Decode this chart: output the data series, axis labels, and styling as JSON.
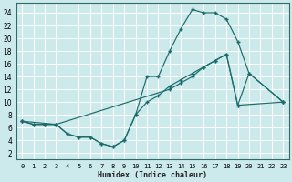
{
  "xlabel": "Humidex (Indice chaleur)",
  "bg_color": "#cce9ec",
  "grid_color": "#ffffff",
  "line_color": "#1a6b6b",
  "xlim": [
    -0.5,
    23.5
  ],
  "ylim": [
    1,
    25.5
  ],
  "xticks": [
    0,
    1,
    2,
    3,
    4,
    5,
    6,
    7,
    8,
    9,
    10,
    11,
    12,
    13,
    14,
    15,
    16,
    17,
    18,
    19,
    20,
    21,
    22,
    23
  ],
  "yticks": [
    2,
    4,
    6,
    8,
    10,
    12,
    14,
    16,
    18,
    20,
    22,
    24
  ],
  "curve1_x": [
    0,
    1,
    2,
    3,
    4,
    5,
    6,
    7,
    8,
    9,
    10,
    11,
    12,
    13,
    14,
    15,
    16,
    17,
    18,
    19,
    20,
    23
  ],
  "curve1_y": [
    7,
    6.5,
    6.5,
    6.5,
    5,
    4.5,
    4.5,
    3.5,
    3,
    4,
    8,
    14,
    14,
    18,
    21.5,
    24.5,
    24,
    24,
    23,
    19.5,
    14.5,
    10
  ],
  "curve2_x": [
    0,
    1,
    2,
    3,
    4,
    5,
    6,
    7,
    8,
    9,
    10,
    11,
    12,
    13,
    14,
    15,
    16,
    17,
    18,
    19,
    23
  ],
  "curve2_y": [
    7,
    6.5,
    6.5,
    6.5,
    5,
    4.5,
    4.5,
    3.5,
    3,
    4,
    8,
    10,
    11,
    12.5,
    13.5,
    14.5,
    15.5,
    16.5,
    17.5,
    9.5,
    10
  ],
  "curve3_x": [
    0,
    3,
    13,
    14,
    15,
    16,
    17,
    18,
    19,
    20,
    23
  ],
  "curve3_y": [
    7,
    6.5,
    12,
    13,
    14,
    15.5,
    16.5,
    17.5,
    9.5,
    14.5,
    10
  ]
}
